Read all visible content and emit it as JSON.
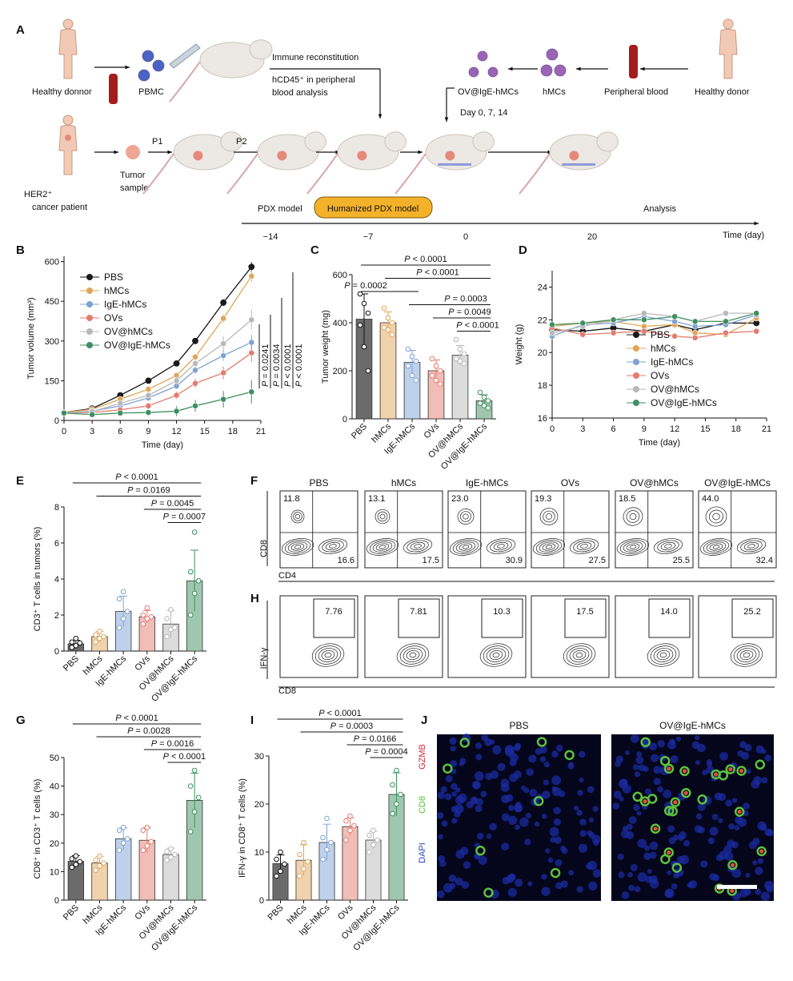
{
  "panel_letters": [
    "A",
    "B",
    "C",
    "D",
    "E",
    "F",
    "G",
    "H",
    "I",
    "J"
  ],
  "colors": {
    "PBS": "#1a1a1a",
    "hMCs": "#e0a55a",
    "IgE-hMCs": "#7fa2d4",
    "OVs": "#e57a6e",
    "OV@hMCs": "#b8b8b8",
    "OV@IgE-hMCs": "#3e8f5f"
  },
  "panelA": {
    "healthy_donor_left": "Healthy donnor",
    "pbmc": "PBMC",
    "immune_reconstitution": "Immune reconstitution",
    "hcd45_line1": "hCD45⁺ in  peripheral",
    "hcd45_line2": "blood analysis",
    "ov_ige": "OV@IgE-hMCs",
    "hmcs": "hMCs",
    "peripheral_blood": "Peripheral blood",
    "healthy_donor_right": "Healthy donor",
    "days": "Day 0, 7, 14",
    "patient_line1": "HER2⁺",
    "patient_line2": "cancer patient",
    "tumor_line1": "Tumor",
    "tumor_line2": "sample",
    "p1": "P1",
    "p2": "P2",
    "pdx_model": "PDX model",
    "humanized_pdx": "Humanized PDX model",
    "analysis": "Analysis",
    "timeline_ticks": [
      "−14",
      "−7",
      "0",
      "20"
    ],
    "timeline_label": "Time (day)"
  },
  "panelF": {
    "titles": [
      "PBS",
      "hMCs",
      "IgE-hMCs",
      "OVs",
      "OV@hMCs",
      "OV@IgE-hMCs"
    ],
    "cd8_single": [
      "11.8",
      "13.1",
      "23.0",
      "19.3",
      "18.5",
      "44.0"
    ],
    "cd4_single": [
      "16.6",
      "17.5",
      "30.9",
      "27.5",
      "25.5",
      "32.4"
    ],
    "ylabel": "CD8",
    "xlabel": "CD4"
  },
  "panelH": {
    "values": [
      "7.76",
      "7.81",
      "10.3",
      "17.5",
      "14.0",
      "25.2"
    ],
    "ylabel": "IFN-γ",
    "xlabel": "CD8"
  },
  "panelJ": {
    "titles": [
      "PBS",
      "OV@IgE-hMCs"
    ],
    "channels": [
      {
        "name": "GZMB",
        "color": "#d8283c"
      },
      {
        "name": "CD8",
        "color": "#5cc23c"
      },
      {
        "name": "DAPI",
        "color": "#2a3fc2"
      }
    ]
  },
  "chart_data": [
    {
      "panel": "B",
      "type": "line",
      "xlabel": "Time (day)",
      "ylabel": "Tumor volume (mm³)",
      "x": [
        0,
        3,
        6,
        9,
        12,
        14,
        17,
        20
      ],
      "xticks": [
        0,
        3,
        6,
        9,
        12,
        15,
        18,
        21
      ],
      "yticks": [
        0,
        150,
        300,
        450,
        600
      ],
      "xlim": [
        0,
        21
      ],
      "ylim": [
        0,
        620
      ],
      "series": [
        {
          "name": "PBS",
          "values": [
            30,
            45,
            95,
            150,
            215,
            300,
            445,
            580
          ]
        },
        {
          "name": "hMCs",
          "values": [
            30,
            42,
            80,
            118,
            170,
            240,
            385,
            545
          ]
        },
        {
          "name": "IgE-hMCs",
          "values": [
            28,
            35,
            55,
            85,
            130,
            190,
            245,
            295
          ]
        },
        {
          "name": "OVs",
          "values": [
            28,
            30,
            40,
            55,
            95,
            140,
            180,
            255
          ]
        },
        {
          "name": "OV@hMCs",
          "values": [
            28,
            33,
            65,
            95,
            150,
            215,
            290,
            380
          ]
        },
        {
          "name": "OV@IgE-hMCs",
          "values": [
            28,
            22,
            28,
            30,
            35,
            55,
            80,
            108
          ]
        }
      ],
      "errors": [
        8,
        6,
        8,
        10,
        15,
        18,
        25,
        35
      ],
      "pvalues": [
        "P = 0.0241",
        "P = 0.0034",
        "P < 0.0001",
        "P < 0.0001"
      ]
    },
    {
      "panel": "C",
      "type": "bar",
      "ylabel": "Tumor weight (mg)",
      "categories": [
        "PBS",
        "hMCs",
        "IgE-hMCs",
        "OVs",
        "OV@hMCs",
        "OV@IgE-hMCs"
      ],
      "values": [
        415,
        400,
        235,
        200,
        265,
        75
      ],
      "errors": [
        105,
        45,
        50,
        45,
        40,
        25
      ],
      "points": [
        [
          520,
          480,
          440,
          390,
          300,
          200
        ],
        [
          460,
          420,
          400,
          380,
          370,
          350
        ],
        [
          290,
          260,
          240,
          220,
          180,
          160
        ],
        [
          250,
          220,
          200,
          180,
          160,
          145
        ],
        [
          330,
          290,
          270,
          250,
          240,
          230
        ],
        [
          110,
          90,
          75,
          65,
          55,
          45
        ]
      ],
      "ylim": [
        0,
        600
      ],
      "yticks": [
        0,
        200,
        400,
        600
      ],
      "comparisons": [
        {
          "text": "P < 0.0001",
          "from": 0,
          "to": 5
        },
        {
          "text": "P < 0.0001",
          "from": 1,
          "to": 5
        },
        {
          "text": "P = 0.0002",
          "from": 0,
          "to": 2
        },
        {
          "text": "P = 0.0003",
          "from": 2,
          "to": 5
        },
        {
          "text": "P = 0.0049",
          "from": 3,
          "to": 5
        },
        {
          "text": "P < 0.0001",
          "from": 4,
          "to": 5
        }
      ]
    },
    {
      "panel": "D",
      "type": "line",
      "xlabel": "Time (day)",
      "ylabel": "Weight (g)",
      "x": [
        0,
        3,
        6,
        9,
        12,
        14,
        17,
        20
      ],
      "xticks": [
        0,
        3,
        6,
        9,
        12,
        15,
        18,
        21
      ],
      "yticks": [
        16,
        18,
        20,
        22,
        24
      ],
      "xlim": [
        0,
        21
      ],
      "ylim": [
        16,
        25
      ],
      "series": [
        {
          "name": "PBS",
          "values": [
            21.4,
            21.3,
            21.5,
            21.3,
            21.7,
            21.4,
            21.8,
            21.8
          ]
        },
        {
          "name": "hMCs",
          "values": [
            21.6,
            21.8,
            21.9,
            21.6,
            21.7,
            21.2,
            21.1,
            22.1
          ]
        },
        {
          "name": "IgE-hMCs",
          "values": [
            21.0,
            21.7,
            21.8,
            22.2,
            21.9,
            21.6,
            21.7,
            22.3
          ]
        },
        {
          "name": "OVs",
          "values": [
            21.5,
            21.1,
            21.2,
            21.3,
            21.0,
            20.9,
            21.2,
            21.3
          ]
        },
        {
          "name": "OV@hMCs",
          "values": [
            21.2,
            21.6,
            22.0,
            22.4,
            22.2,
            21.9,
            22.4,
            22.4
          ]
        },
        {
          "name": "OV@IgE-hMCs",
          "values": [
            21.7,
            21.8,
            22.0,
            22.0,
            22.2,
            21.9,
            21.9,
            22.4
          ]
        }
      ]
    },
    {
      "panel": "E",
      "type": "bar",
      "ylabel": "CD3⁺ T cells in tumors (%)",
      "categories": [
        "PBS",
        "hMCs",
        "IgE-hMCs",
        "OVs",
        "OV@hMCs",
        "OV@IgE-hMCs"
      ],
      "values": [
        0.4,
        0.8,
        2.2,
        1.9,
        1.5,
        3.9
      ],
      "errors": [
        0.2,
        0.3,
        0.85,
        0.35,
        0.75,
        1.7
      ],
      "points": [
        [
          0.2,
          0.3,
          0.45,
          0.5,
          0.7
        ],
        [
          0.5,
          0.7,
          0.8,
          0.9,
          1.1
        ],
        [
          1.3,
          1.8,
          2.2,
          2.9,
          3.3
        ],
        [
          1.5,
          1.8,
          1.9,
          2.0,
          2.4
        ],
        [
          0.8,
          1.2,
          1.3,
          1.8,
          2.3
        ],
        [
          2.0,
          3.2,
          3.9,
          4.4,
          6.6
        ]
      ],
      "ylim": [
        0,
        8
      ],
      "yticks": [
        0,
        2,
        4,
        6,
        8
      ],
      "comparisons": [
        {
          "text": "P < 0.0001",
          "from": 0,
          "to": 5
        },
        {
          "text": "P = 0.0169",
          "from": 1,
          "to": 5
        },
        {
          "text": "P = 0.0045",
          "from": 3,
          "to": 5
        },
        {
          "text": "P = 0.0007",
          "from": 4,
          "to": 5
        }
      ]
    },
    {
      "panel": "G",
      "type": "bar",
      "ylabel": "CD8⁺ in CD3⁺ T cells (%)",
      "categories": [
        "PBS",
        "hMCs",
        "IgE-hMCs",
        "OVs",
        "OV@hMCs",
        "OV@IgE-hMCs"
      ],
      "values": [
        13.6,
        13.0,
        21.5,
        21.0,
        16.0,
        35.0
      ],
      "errors": [
        2.0,
        2.3,
        3.8,
        4.5,
        2.2,
        9.5
      ],
      "points": [
        [
          11.5,
          12.5,
          13.5,
          14.5,
          15.5
        ],
        [
          10.5,
          12,
          13,
          14,
          15.5
        ],
        [
          17.5,
          20,
          21.5,
          24.5,
          25.5
        ],
        [
          17.5,
          19,
          20.5,
          24.5,
          25.5
        ],
        [
          14,
          15,
          16,
          17,
          18
        ],
        [
          24,
          31,
          36,
          40,
          45.5
        ]
      ],
      "ylim": [
        0,
        50
      ],
      "yticks": [
        0,
        10,
        20,
        30,
        40,
        50
      ],
      "comparisons": [
        {
          "text": "P < 0.0001",
          "from": 0,
          "to": 5
        },
        {
          "text": "P = 0.0028",
          "from": 1,
          "to": 5
        },
        {
          "text": "P = 0.0016",
          "from": 3,
          "to": 5
        },
        {
          "text": "P < 0.0001",
          "from": 4,
          "to": 5
        }
      ]
    },
    {
      "panel": "I",
      "type": "bar",
      "ylabel": "IFN-γ in CD8⁺ T cells (%)",
      "categories": [
        "PBS",
        "hMCs",
        "IgE-hMCs",
        "OVs",
        "OV@hMCs",
        "OV@IgE-hMCs"
      ],
      "values": [
        7.6,
        8.3,
        12.0,
        15.3,
        12.5,
        22.0
      ],
      "errors": [
        1.8,
        3.2,
        3.8,
        1.8,
        1.8,
        4.5
      ],
      "points": [
        [
          5,
          6,
          7.5,
          8.5,
          10
        ],
        [
          5,
          6.5,
          8,
          9.5,
          12
        ],
        [
          8.5,
          10.5,
          12,
          13,
          17
        ],
        [
          12.5,
          14.5,
          15.5,
          16.5,
          17.5
        ],
        [
          10,
          11.5,
          12.5,
          13.5,
          14.5
        ],
        [
          18,
          20,
          22,
          24,
          27
        ]
      ],
      "ylim": [
        0,
        30
      ],
      "yticks": [
        0,
        10,
        20,
        30
      ],
      "comparisons": [
        {
          "text": "P < 0.0001",
          "from": 0,
          "to": 5
        },
        {
          "text": "P = 0.0003",
          "from": 1,
          "to": 5
        },
        {
          "text": "P = 0.0166",
          "from": 3,
          "to": 5
        },
        {
          "text": "P = 0.0004",
          "from": 4,
          "to": 5
        }
      ]
    }
  ]
}
